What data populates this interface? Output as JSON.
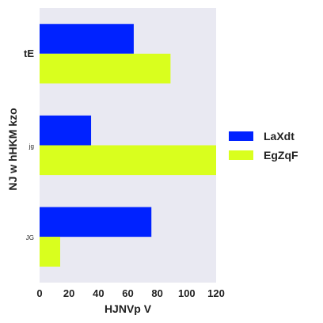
{
  "chart_data": {
    "type": "bar",
    "orientation": "horizontal",
    "categories": [
      "tE",
      "jg",
      "JG"
    ],
    "series": [
      {
        "name": "LaXdt",
        "color": "#0022ff",
        "values": [
          64,
          35,
          76
        ]
      },
      {
        "name": "EgZqF",
        "color": "#d9ff1e",
        "values": [
          89,
          120,
          14
        ]
      }
    ],
    "xlabel": "HJNVp V",
    "ylabel": "NJ w hHKM kzo",
    "xlim": [
      0,
      120
    ],
    "xticks": [
      0,
      20,
      40,
      60,
      80,
      100,
      120
    ],
    "grid": false,
    "background": "#e9e9f2",
    "legend_position": "right"
  }
}
